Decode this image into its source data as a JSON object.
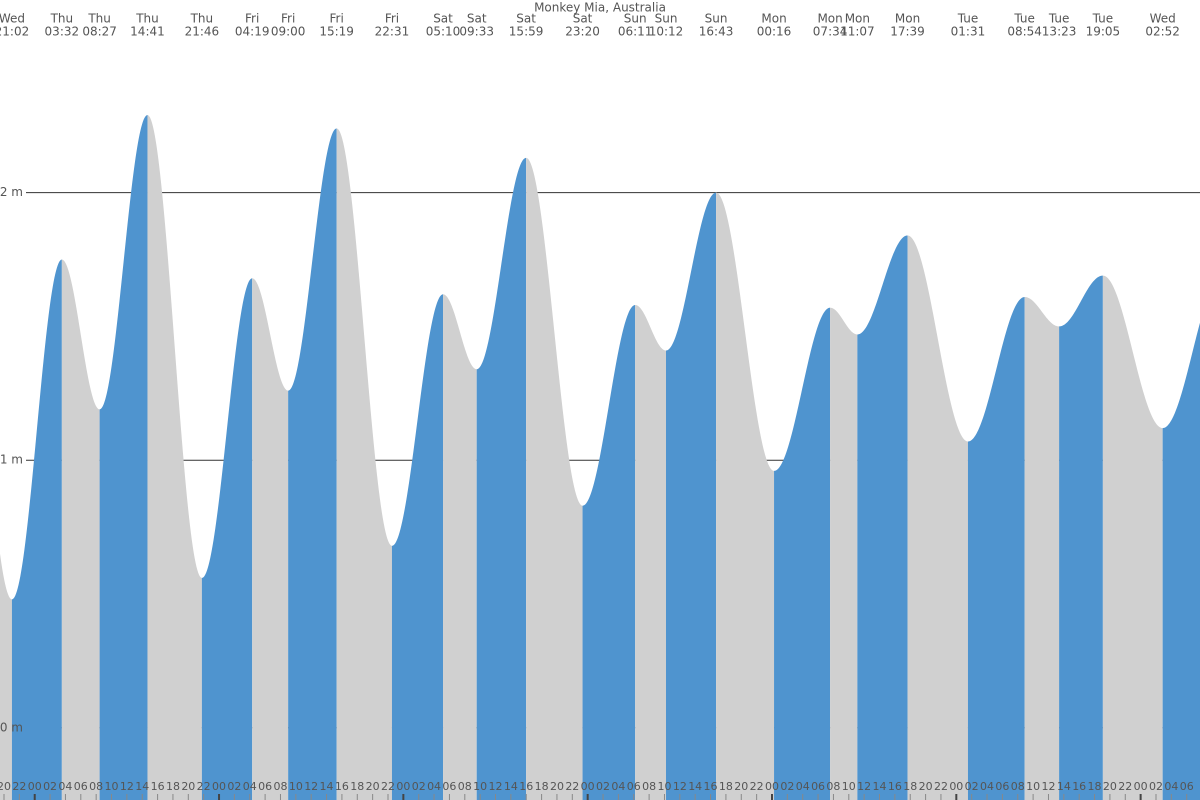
{
  "chart_data": {
    "type": "tide",
    "title": "Monkey Mia, Australia",
    "days": [
      "Wed",
      "Thu",
      "Thu",
      "Thu",
      "Thu",
      "Fri",
      "Fri",
      "Fri",
      "Fri",
      "Sat",
      "Sat",
      "Sat",
      "Sat",
      "Sun",
      "Sun",
      "Sun",
      "Mon",
      "Mon",
      "Mon",
      "Mon",
      "Tue",
      "Tue",
      "Tue",
      "Tue",
      "Wed"
    ],
    "times": [
      "21:02",
      "03:32",
      "08:27",
      "14:41",
      "21:46",
      "04:19",
      "09:00",
      "15:19",
      "22:31",
      "05:10",
      "09:33",
      "15:59",
      "23:20",
      "06:11",
      "10:12",
      "16:43",
      "00:16",
      "07:34",
      "11:07",
      "17:39",
      "01:31",
      "08:54",
      "13:23",
      "19:05",
      "02:52"
    ],
    "values": [
      0.48,
      1.75,
      1.19,
      2.29,
      0.56,
      1.68,
      1.26,
      2.24,
      0.68,
      1.62,
      1.34,
      2.13,
      0.83,
      1.58,
      1.41,
      2.0,
      0.96,
      1.57,
      1.47,
      1.84,
      1.07,
      1.61,
      1.5,
      1.69,
      1.12
    ],
    "hour_labels": [
      "20",
      "22",
      "00",
      "02",
      "04",
      "06",
      "08",
      "10",
      "12",
      "14",
      "16",
      "18",
      "20",
      "22",
      "00",
      "02",
      "04",
      "06",
      "08",
      "10",
      "12",
      "14",
      "16",
      "18",
      "20",
      "22",
      "00",
      "02",
      "04",
      "06",
      "08",
      "10",
      "12",
      "14",
      "16",
      "18",
      "20",
      "22",
      "00",
      "02",
      "04",
      "06",
      "08",
      "10",
      "12",
      "14",
      "16",
      "18",
      "20",
      "22",
      "00",
      "02",
      "04",
      "06",
      "08",
      "10",
      "12",
      "14",
      "16",
      "18",
      "20",
      "22",
      "00",
      "02",
      "04",
      "06",
      "08",
      "10",
      "12",
      "14",
      "16",
      "18",
      "20",
      "22",
      "00",
      "02",
      "04",
      "06"
    ],
    "xlim": [
      19.48,
      175.73
    ],
    "ylim": [
      -0.27,
      2.72
    ],
    "yticks": [
      {
        "value": 0,
        "label": "0 m"
      },
      {
        "value": 1,
        "label": "1 m"
      },
      {
        "value": 2,
        "label": "2 m"
      }
    ],
    "grid": true,
    "rising_color": "#4f94cf",
    "falling_color": "#d0d0d0"
  }
}
